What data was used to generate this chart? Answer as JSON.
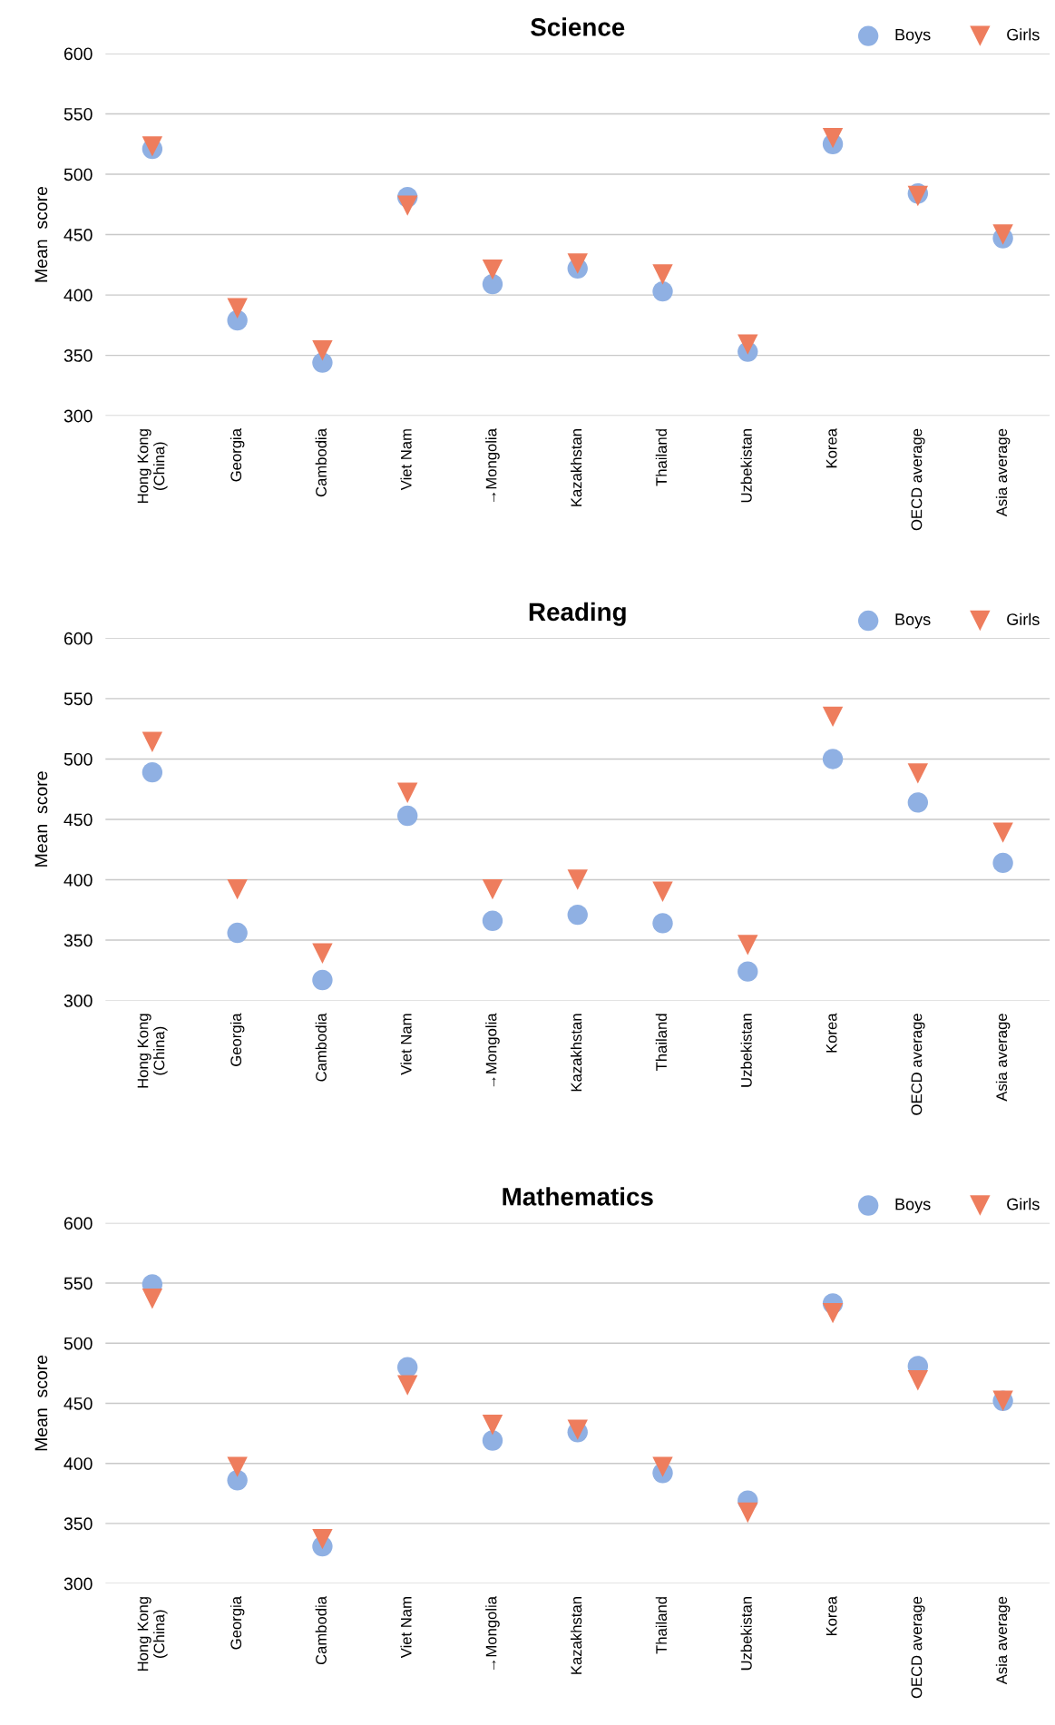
{
  "chart_data": [
    {
      "type": "scatter",
      "title": "Science",
      "ylabel": "Mean  score",
      "categories": [
        "Hong Kong\n(China)",
        "Georgia",
        "Cambodia",
        "Viet Nam",
        "→Mongolia",
        "Kazakhstan",
        "Thailand",
        "Uzbekistan",
        "Korea",
        "OECD average",
        "Asia average"
      ],
      "ylim": [
        300,
        600
      ],
      "yticks": [
        300,
        350,
        400,
        450,
        500,
        550,
        600
      ],
      "grid": "y",
      "legend": "top right",
      "series": [
        {
          "name": "Boys",
          "color": "#8fb0e3",
          "marker": "circle",
          "values": [
            521,
            379,
            344,
            481,
            409,
            422,
            403,
            353,
            525,
            484,
            447
          ]
        },
        {
          "name": "Girls",
          "color": "#ee7d5d",
          "marker": "triangle",
          "values": [
            523,
            389,
            354,
            474,
            421,
            426,
            417,
            359,
            530,
            482,
            450
          ]
        }
      ]
    },
    {
      "type": "scatter",
      "title": "Reading",
      "ylabel": "Mean  score",
      "categories": [
        "Hong Kong\n(China)",
        "Georgia",
        "Cambodia",
        "Viet Nam",
        "→Mongolia",
        "Kazakhstan",
        "Thailand",
        "Uzbekistan",
        "Korea",
        "OECD average",
        "Asia average"
      ],
      "ylim": [
        300,
        600
      ],
      "yticks": [
        300,
        350,
        400,
        450,
        500,
        550,
        600
      ],
      "grid": "y",
      "legend": "top right",
      "series": [
        {
          "name": "Boys",
          "color": "#8fb0e3",
          "marker": "circle",
          "values": [
            489,
            356,
            317,
            453,
            366,
            371,
            364,
            324,
            500,
            464,
            414
          ]
        },
        {
          "name": "Girls",
          "color": "#ee7d5d",
          "marker": "triangle",
          "values": [
            514,
            392,
            339,
            472,
            392,
            400,
            390,
            346,
            535,
            488,
            439
          ]
        }
      ]
    },
    {
      "type": "scatter",
      "title": "Mathematics",
      "ylabel": "Mean  score",
      "categories": [
        "Hong Kong\n(China)",
        "Georgia",
        "Cambodia",
        "Viet Nam",
        "→Mongolia",
        "Kazakhstan",
        "Thailand",
        "Uzbekistan",
        "Korea",
        "OECD average",
        "Asia average"
      ],
      "ylim": [
        300,
        600
      ],
      "yticks": [
        300,
        350,
        400,
        450,
        500,
        550,
        600
      ],
      "grid": "y",
      "legend": "top right",
      "series": [
        {
          "name": "Boys",
          "color": "#8fb0e3",
          "marker": "circle",
          "values": [
            549,
            386,
            331,
            480,
            419,
            426,
            392,
            369,
            533,
            481,
            452
          ]
        },
        {
          "name": "Girls",
          "color": "#ee7d5d",
          "marker": "triangle",
          "values": [
            537,
            397,
            337,
            465,
            432,
            428,
            397,
            359,
            525,
            469,
            452
          ]
        }
      ]
    }
  ]
}
